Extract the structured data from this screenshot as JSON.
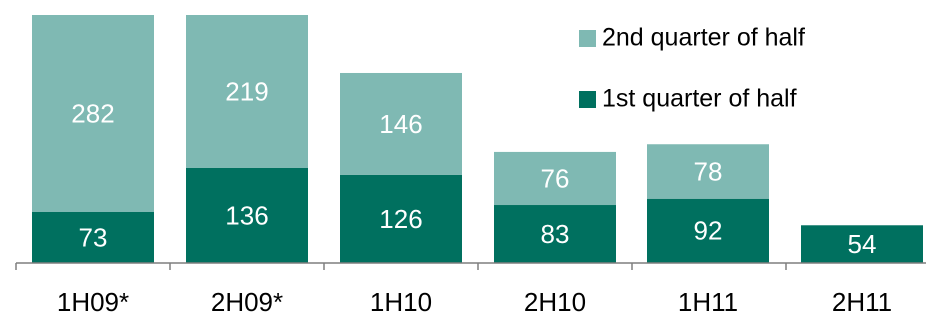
{
  "chart_data": {
    "type": "bar",
    "stacked": true,
    "categories": [
      "1H09*",
      "2H09*",
      "1H10",
      "2H10",
      "1H11",
      "2H11"
    ],
    "series": [
      {
        "name": "1st quarter of half",
        "values": [
          73,
          136,
          126,
          83,
          92,
          54
        ],
        "color": "#00705f"
      },
      {
        "name": "2nd quarter of half",
        "values": [
          282,
          219,
          146,
          76,
          78,
          null
        ],
        "color": "#7fb9b3"
      }
    ],
    "legend": {
      "placement": "top-right",
      "order": [
        "2nd quarter of half",
        "1st quarter of half"
      ]
    },
    "ylim": [
      0,
      355
    ],
    "grid": false,
    "title": "",
    "xlabel": "",
    "ylabel": ""
  }
}
